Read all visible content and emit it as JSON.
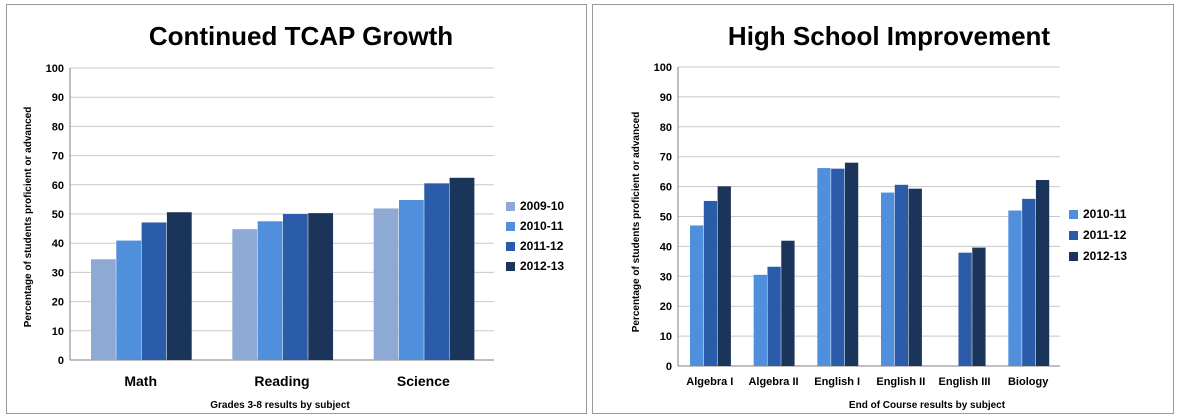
{
  "chart_data": [
    {
      "type": "bar",
      "title": "Continued TCAP Growth",
      "xlabel": "Grades 3-8 results by subject",
      "ylabel": "Percentage of students proficient or advanced",
      "ylim": [
        0,
        100
      ],
      "yticks": [
        "0",
        "10",
        "20",
        "30",
        "40",
        "50",
        "60",
        "70",
        "80",
        "90",
        "100"
      ],
      "grid": true,
      "legend_position": "right",
      "categories": [
        "Math",
        "Reading",
        "Science"
      ],
      "series": [
        {
          "name": "2009-10",
          "color": "#8eaad4",
          "values": [
            34.5,
            44.8,
            51.9
          ]
        },
        {
          "name": "2010-11",
          "color": "#4f8fdc",
          "values": [
            40.9,
            47.5,
            54.8
          ]
        },
        {
          "name": "2011-12",
          "color": "#2a5caa",
          "values": [
            47.1,
            50.0,
            60.5
          ]
        },
        {
          "name": "2012-13",
          "color": "#1a3559",
          "values": [
            50.6,
            50.3,
            62.4
          ]
        }
      ]
    },
    {
      "type": "bar",
      "title": "High School Improvement",
      "xlabel": "End of Course results by subject",
      "ylabel": "Percentage of students proficient or advanced",
      "ylim": [
        0,
        100
      ],
      "yticks": [
        "0",
        "10",
        "20",
        "30",
        "40",
        "50",
        "60",
        "70",
        "80",
        "90",
        "100"
      ],
      "grid": true,
      "legend_position": "right",
      "categories": [
        "Algebra I",
        "Algebra II",
        "English I",
        "English II",
        "English III",
        "Biology"
      ],
      "series": [
        {
          "name": "2010-11",
          "color": "#4f8fdc",
          "values": [
            47.0,
            30.5,
            66.2,
            58.0,
            null,
            52.0
          ]
        },
        {
          "name": "2011-12",
          "color": "#2a5caa",
          "values": [
            55.2,
            33.2,
            66.0,
            60.6,
            37.9,
            55.9
          ]
        },
        {
          "name": "2012-13",
          "color": "#1a3559",
          "values": [
            60.1,
            41.9,
            68.0,
            59.3,
            39.6,
            62.2
          ]
        }
      ]
    }
  ]
}
